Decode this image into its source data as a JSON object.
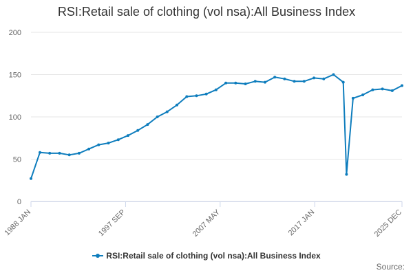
{
  "chart_data": {
    "type": "line",
    "title": "RSI:Retail sale of clothing (vol nsa):All Business Index",
    "xlabel": "",
    "ylabel": "",
    "ylim": [
      0,
      200
    ],
    "yticks": [
      0,
      50,
      100,
      150,
      200
    ],
    "x_range": [
      "1988 JAN",
      "2025 DEC"
    ],
    "xtick_labels": [
      "1988 JAN",
      "1997 SEP",
      "2007 MAY",
      "2017 JAN",
      "2025 DEC"
    ],
    "grid": true,
    "legend_position": "bottom",
    "series": [
      {
        "name": "RSI:Retail sale of clothing (vol nsa):All Business Index",
        "color": "#0e7dbd",
        "x": [
          "1988 JAN",
          "1988 DEC",
          "1989 DEC",
          "1990 DEC",
          "1991 DEC",
          "1992 DEC",
          "1993 DEC",
          "1994 DEC",
          "1995 DEC",
          "1996 DEC",
          "1997 DEC",
          "1998 DEC",
          "1999 DEC",
          "2000 DEC",
          "2001 DEC",
          "2002 DEC",
          "2003 DEC",
          "2004 DEC",
          "2005 DEC",
          "2006 DEC",
          "2007 DEC",
          "2008 DEC",
          "2009 DEC",
          "2010 DEC",
          "2011 DEC",
          "2012 DEC",
          "2013 DEC",
          "2014 DEC",
          "2015 DEC",
          "2016 DEC",
          "2017 DEC",
          "2018 DEC",
          "2019 DEC",
          "2020 APR",
          "2020 DEC",
          "2021 DEC",
          "2022 DEC",
          "2023 DEC",
          "2024 DEC",
          "2025 DEC"
        ],
        "values": [
          27,
          58,
          57,
          57,
          55,
          57,
          62,
          67,
          69,
          73,
          78,
          84,
          91,
          100,
          106,
          114,
          124,
          125,
          127,
          132,
          140,
          140,
          139,
          142,
          141,
          147,
          145,
          142,
          142,
          146,
          145,
          150,
          141,
          32,
          122,
          126,
          132,
          133,
          131,
          137
        ]
      }
    ]
  },
  "legend": {
    "label": "RSI:Retail sale of clothing (vol nsa):All Business Index"
  },
  "source_label": "Source:",
  "colors": {
    "series": "#0e7dbd",
    "grid": "#e6e6e6",
    "axis": "#ccd6eb"
  }
}
